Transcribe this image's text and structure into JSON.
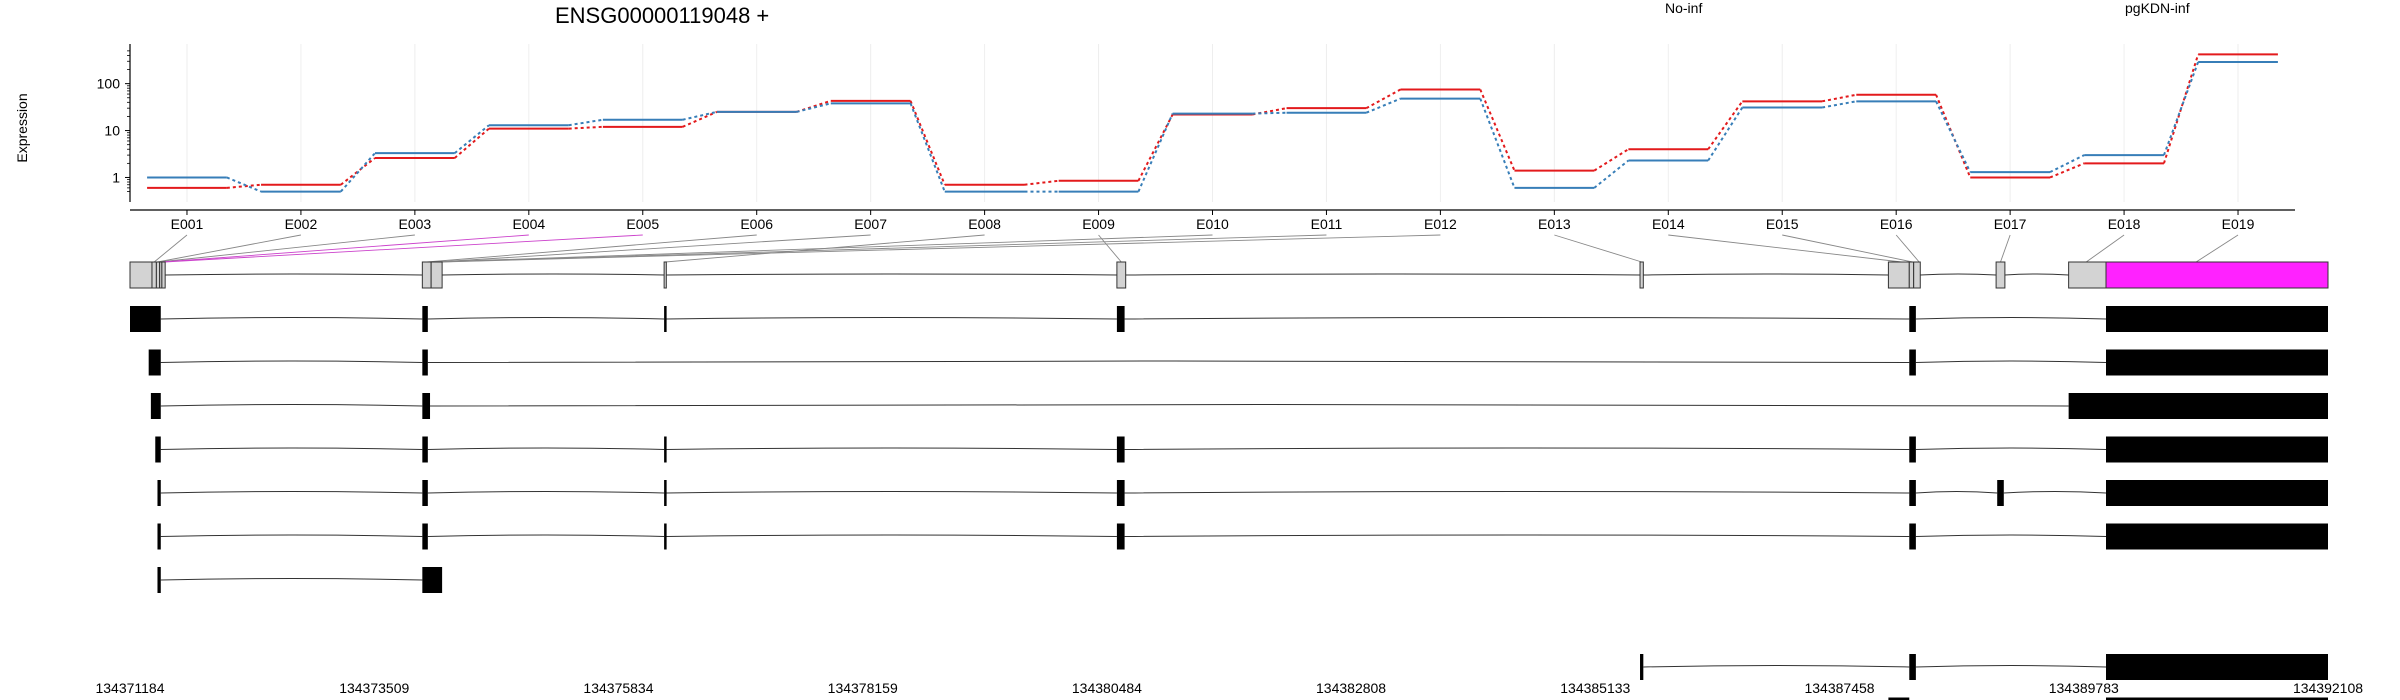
{
  "chart_data": {
    "type": "line",
    "title": "ENSG00000119048 +",
    "ylabel": "Expression",
    "legend": [
      "No-inf",
      "pgKDN-inf"
    ],
    "y_scale": "log",
    "ylim": [
      0.3,
      700
    ],
    "y_ticks": [
      1,
      10,
      100
    ],
    "y_tick_labels": [
      "1",
      "10",
      "100"
    ],
    "categories": [
      "E001",
      "E002",
      "E003",
      "E004",
      "E005",
      "E006",
      "E007",
      "E008",
      "E009",
      "E010",
      "E011",
      "E012",
      "E013",
      "E014",
      "E015",
      "E016",
      "E017",
      "E018",
      "E019"
    ],
    "series": [
      {
        "name": "No-inf",
        "color": "#e31a1c",
        "values": [
          0.6,
          0.7,
          2.6,
          11,
          12,
          25,
          43,
          0.7,
          0.85,
          22,
          30,
          75,
          1.4,
          4,
          42,
          58,
          1.0,
          2.0,
          420
        ]
      },
      {
        "name": "pgKDN-inf",
        "color": "#377eb8",
        "values": [
          1.0,
          0.5,
          3.3,
          13,
          17,
          25,
          38,
          0.5,
          0.5,
          23,
          24,
          48,
          0.6,
          2.3,
          31,
          42,
          1.3,
          3.0,
          290
        ]
      }
    ],
    "gene_model": {
      "exon_colors": {
        "default": "#d3d3d3",
        "highlight": "#ff22ff"
      },
      "coordinate_range": [
        134371184,
        134392108
      ],
      "coordinate_ticks": [
        134371184,
        134373509,
        134375834,
        134378159,
        134380484,
        134382808,
        134385133,
        134387458,
        134389783,
        134392108
      ],
      "coordinate_tick_labels": [
        "134371184",
        "134373509",
        "134375834",
        "134378159",
        "134380484",
        "134382808",
        "134385133",
        "134387458",
        "134389783",
        "134392108"
      ]
    }
  }
}
